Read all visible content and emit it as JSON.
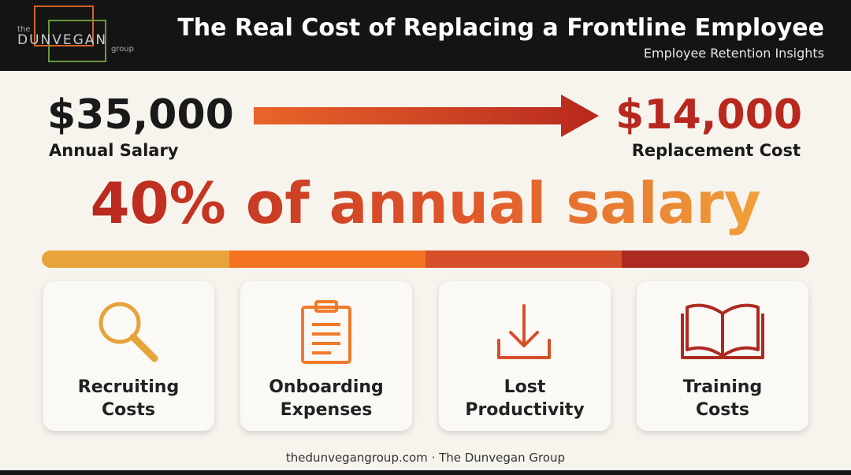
{
  "header": {
    "logo": {
      "top": "the",
      "name": "DUNVEGAN",
      "bottom": "group"
    },
    "title": "The Real Cost of Replacing a Frontline Employee",
    "subtitle": "Employee Retention Insights"
  },
  "comparison": {
    "from": {
      "amount": "$35,000",
      "label": "Annual Salary"
    },
    "to": {
      "amount": "$14,000",
      "label": "Replacement Cost"
    },
    "headline": "40% of annual salary"
  },
  "cards": [
    {
      "lines": [
        "Recruiting",
        "Costs"
      ]
    },
    {
      "lines": [
        "Onboarding",
        "Expenses"
      ]
    },
    {
      "lines": [
        "Lost",
        "Productivity"
      ]
    },
    {
      "lines": [
        "Training",
        "Costs"
      ]
    }
  ],
  "footer": "thedunvegangroup.com · The Dunvegan Group"
}
